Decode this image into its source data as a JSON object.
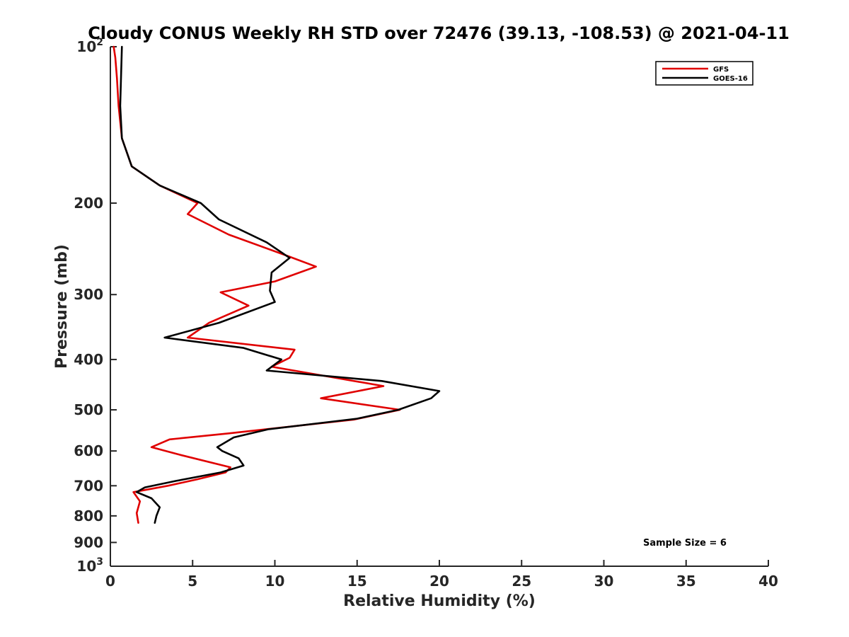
{
  "chart_data": {
    "type": "line",
    "title": "Cloudy CONUS Weekly RH STD over 72476 (39.13, -108.53) @ 2021-04-11",
    "xlabel": "Relative Humidity (%)",
    "ylabel": "Pressure (mb)",
    "xlim": [
      0,
      40
    ],
    "ylim": [
      100,
      1000
    ],
    "y_scale": "log",
    "y_reversed": true,
    "x_ticks": [
      0,
      5,
      10,
      15,
      20,
      25,
      30,
      35,
      40
    ],
    "x_tick_labels": [
      "0",
      "5",
      "10",
      "15",
      "20",
      "25",
      "30",
      "35",
      "40"
    ],
    "y_ticks": [
      100,
      200,
      300,
      400,
      500,
      600,
      700,
      800,
      900,
      1000
    ],
    "y_tick_labels": [
      {
        "base": "10",
        "exp": "2"
      },
      {
        "base": "200",
        "exp": ""
      },
      {
        "base": "300",
        "exp": ""
      },
      {
        "base": "400",
        "exp": ""
      },
      {
        "base": "500",
        "exp": ""
      },
      {
        "base": "600",
        "exp": ""
      },
      {
        "base": "700",
        "exp": ""
      },
      {
        "base": "800",
        "exp": ""
      },
      {
        "base": "900",
        "exp": ""
      },
      {
        "base": "10",
        "exp": "3"
      }
    ],
    "grid": false,
    "legend_position": "top-right",
    "series": [
      {
        "name": "GFS",
        "color": "#e00000",
        "points": [
          [
            0.2,
            100
          ],
          [
            0.3,
            105
          ],
          [
            0.4,
            115
          ],
          [
            0.5,
            130
          ],
          [
            0.7,
            150
          ],
          [
            1.3,
            170
          ],
          [
            3.0,
            185
          ],
          [
            5.3,
            200
          ],
          [
            4.7,
            210
          ],
          [
            7.2,
            230
          ],
          [
            10.8,
            253
          ],
          [
            12.5,
            265
          ],
          [
            10.0,
            283
          ],
          [
            6.7,
            297
          ],
          [
            8.4,
            315
          ],
          [
            6.0,
            340
          ],
          [
            4.7,
            363
          ],
          [
            11.2,
            383
          ],
          [
            10.9,
            397
          ],
          [
            9.8,
            413
          ],
          [
            16.6,
            450
          ],
          [
            12.8,
            475
          ],
          [
            17.6,
            500
          ],
          [
            14.8,
            522
          ],
          [
            7.2,
            555
          ],
          [
            3.6,
            570
          ],
          [
            2.5,
            590
          ],
          [
            4.2,
            610
          ],
          [
            7.3,
            645
          ],
          [
            7.0,
            660
          ],
          [
            5.3,
            680
          ],
          [
            3.5,
            700
          ],
          [
            1.4,
            720
          ],
          [
            1.8,
            750
          ],
          [
            1.6,
            790
          ],
          [
            1.7,
            825
          ]
        ]
      },
      {
        "name": "GOES-16",
        "color": "#000000",
        "points": [
          [
            0.7,
            100
          ],
          [
            0.6,
            130
          ],
          [
            0.7,
            150
          ],
          [
            1.3,
            170
          ],
          [
            3.0,
            185
          ],
          [
            5.5,
            200
          ],
          [
            6.6,
            215
          ],
          [
            9.5,
            238
          ],
          [
            10.9,
            255
          ],
          [
            9.8,
            272
          ],
          [
            9.7,
            295
          ],
          [
            10.0,
            310
          ],
          [
            6.6,
            340
          ],
          [
            3.3,
            363
          ],
          [
            8.1,
            380
          ],
          [
            10.4,
            400
          ],
          [
            9.5,
            420
          ],
          [
            16.5,
            440
          ],
          [
            20.0,
            460
          ],
          [
            19.5,
            475
          ],
          [
            17.5,
            500
          ],
          [
            15.0,
            520
          ],
          [
            9.6,
            545
          ],
          [
            7.5,
            565
          ],
          [
            6.5,
            590
          ],
          [
            6.8,
            600
          ],
          [
            7.8,
            620
          ],
          [
            8.1,
            640
          ],
          [
            6.7,
            660
          ],
          [
            4.0,
            685
          ],
          [
            2.1,
            705
          ],
          [
            1.6,
            720
          ],
          [
            2.5,
            740
          ],
          [
            3.0,
            770
          ],
          [
            2.8,
            800
          ],
          [
            2.7,
            825
          ]
        ]
      }
    ],
    "annotation": "Sample Size = 6"
  }
}
